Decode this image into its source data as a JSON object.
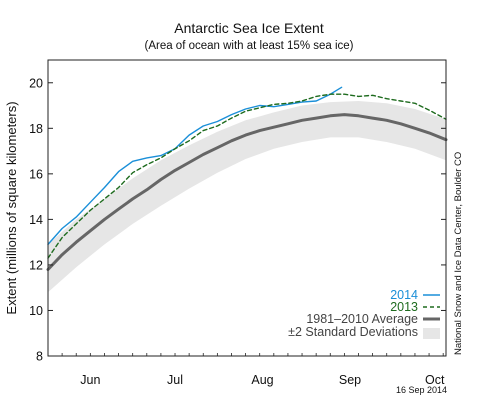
{
  "chart_data": {
    "type": "line",
    "title": "Antarctic Sea Ice Extent",
    "subtitle": "(Area of ocean with at least 15% sea ice)",
    "ylabel": "Extent (millions of square kilometers)",
    "xlabel": "",
    "ylim": [
      8,
      21
    ],
    "yticks": [
      8,
      10,
      12,
      14,
      16,
      18,
      20
    ],
    "xlim": [
      0,
      141
    ],
    "month_ticks": [
      {
        "label": "Jun",
        "x": 15
      },
      {
        "label": "Jul",
        "x": 45
      },
      {
        "label": "Aug",
        "x": 76
      },
      {
        "label": "Sep",
        "x": 107
      },
      {
        "label": "Oct",
        "x": 137
      }
    ],
    "grid": false,
    "legend_position": "bottom-right",
    "credit": "National Snow and Ice Data Center, Boulder CO",
    "date_stamp": "16 Sep 2014",
    "colors": {
      "2014": "#1a8fd8",
      "2013": "#1e6b1e",
      "average": "#666666",
      "band": "#e6e6e6"
    },
    "band": {
      "name": "±2 Standard Deviations",
      "x": [
        0,
        10,
        20,
        30,
        40,
        50,
        60,
        70,
        80,
        90,
        100,
        110,
        120,
        130,
        141
      ],
      "lower": [
        10.8,
        11.9,
        12.9,
        13.8,
        14.6,
        15.35,
        16.05,
        16.65,
        17.1,
        17.4,
        17.6,
        17.6,
        17.4,
        17.1,
        16.6
      ],
      "upper": [
        12.9,
        14.0,
        14.9,
        15.8,
        16.6,
        17.25,
        17.85,
        18.35,
        18.7,
        19.0,
        19.15,
        19.2,
        19.1,
        18.85,
        18.4
      ]
    },
    "series": [
      {
        "name": "1981–2010 Average",
        "key": "average",
        "style": "solid",
        "x": [
          0,
          5,
          10,
          15,
          20,
          25,
          30,
          35,
          40,
          45,
          50,
          55,
          60,
          65,
          70,
          75,
          80,
          85,
          90,
          95,
          100,
          105,
          110,
          115,
          120,
          125,
          130,
          135,
          141
        ],
        "values": [
          11.8,
          12.45,
          13.0,
          13.5,
          14.0,
          14.45,
          14.9,
          15.3,
          15.75,
          16.15,
          16.5,
          16.85,
          17.15,
          17.45,
          17.7,
          17.9,
          18.05,
          18.2,
          18.35,
          18.45,
          18.55,
          18.6,
          18.55,
          18.45,
          18.35,
          18.2,
          18.0,
          17.8,
          17.5
        ]
      },
      {
        "name": "2014",
        "key": "2014",
        "style": "solid",
        "x": [
          0,
          5,
          10,
          15,
          20,
          25,
          30,
          35,
          40,
          45,
          50,
          55,
          60,
          65,
          70,
          75,
          80,
          85,
          90,
          95,
          100,
          104
        ],
        "values": [
          12.9,
          13.6,
          14.1,
          14.75,
          15.4,
          16.1,
          16.55,
          16.7,
          16.8,
          17.1,
          17.7,
          18.1,
          18.3,
          18.6,
          18.85,
          19.0,
          18.95,
          19.05,
          19.15,
          19.2,
          19.5,
          19.8
        ]
      },
      {
        "name": "2013",
        "key": "2013",
        "style": "dashed",
        "x": [
          0,
          5,
          10,
          15,
          20,
          25,
          30,
          35,
          40,
          45,
          50,
          55,
          60,
          65,
          70,
          75,
          80,
          85,
          90,
          95,
          100,
          105,
          110,
          115,
          120,
          125,
          130,
          135,
          141
        ],
        "values": [
          12.3,
          13.2,
          13.8,
          14.4,
          14.9,
          15.4,
          16.05,
          16.4,
          16.7,
          17.1,
          17.45,
          17.9,
          18.1,
          18.45,
          18.75,
          18.9,
          19.05,
          19.1,
          19.2,
          19.4,
          19.5,
          19.5,
          19.4,
          19.45,
          19.3,
          19.2,
          19.1,
          18.8,
          18.4
        ]
      }
    ]
  }
}
